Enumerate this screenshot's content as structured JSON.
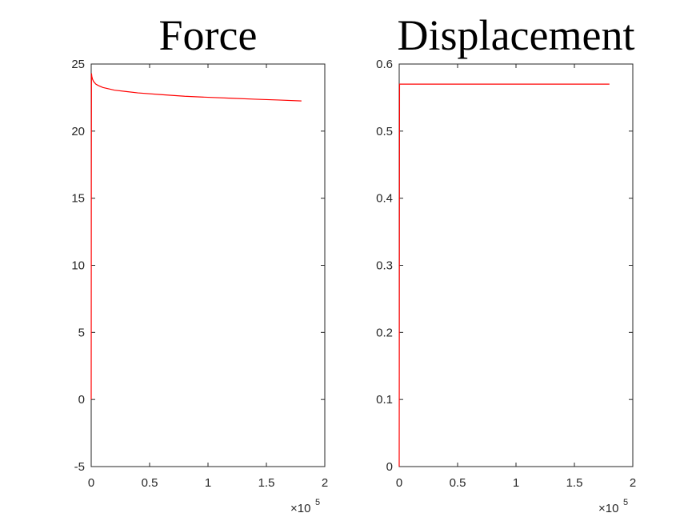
{
  "chart_data": [
    {
      "type": "line",
      "title": "Force",
      "xlabel": "",
      "ylabel": "",
      "xlim": [
        0,
        200000
      ],
      "ylim": [
        -5,
        25
      ],
      "x_ticks": [
        0,
        50000,
        100000,
        150000,
        200000
      ],
      "x_tick_labels": [
        "0",
        "0.5",
        "1",
        "1.5",
        "2"
      ],
      "x_exponent_label": {
        "base": "×10",
        "power": "5"
      },
      "y_ticks": [
        -5,
        0,
        5,
        10,
        15,
        20,
        25
      ],
      "y_tick_labels": [
        "-5",
        "0",
        "5",
        "10",
        "15",
        "20",
        "25"
      ],
      "grid": false,
      "series": [
        {
          "color": "#ff0000",
          "x": [
            0,
            100,
            250,
            500,
            1000,
            2000,
            4000,
            6000,
            10000,
            20000,
            30000,
            40000,
            60000,
            80000,
            100000,
            120000,
            140000,
            160000,
            180000
          ],
          "y": [
            0,
            16,
            24.3,
            24.1,
            23.9,
            23.7,
            23.5,
            23.4,
            23.25,
            23.05,
            22.95,
            22.85,
            22.72,
            22.6,
            22.52,
            22.45,
            22.38,
            22.32,
            22.25
          ]
        }
      ]
    },
    {
      "type": "line",
      "title": "Displacement",
      "xlabel": "",
      "ylabel": "",
      "xlim": [
        0,
        200000
      ],
      "ylim": [
        0,
        0.6
      ],
      "x_ticks": [
        0,
        50000,
        100000,
        150000,
        200000
      ],
      "x_tick_labels": [
        "0",
        "0.5",
        "1",
        "1.5",
        "2"
      ],
      "x_exponent_label": {
        "base": "×10",
        "power": "5"
      },
      "y_ticks": [
        0,
        0.1,
        0.2,
        0.3,
        0.4,
        0.5,
        0.6
      ],
      "y_tick_labels": [
        "0",
        "0.1",
        "0.2",
        "0.3",
        "0.4",
        "0.5",
        "0.6"
      ],
      "grid": false,
      "series": [
        {
          "color": "#ff0000",
          "x": [
            0,
            300,
            600,
            1000,
            50000,
            100000,
            150000,
            180000
          ],
          "y": [
            0,
            0.57,
            0.57,
            0.57,
            0.57,
            0.57,
            0.57,
            0.57
          ]
        }
      ]
    }
  ]
}
